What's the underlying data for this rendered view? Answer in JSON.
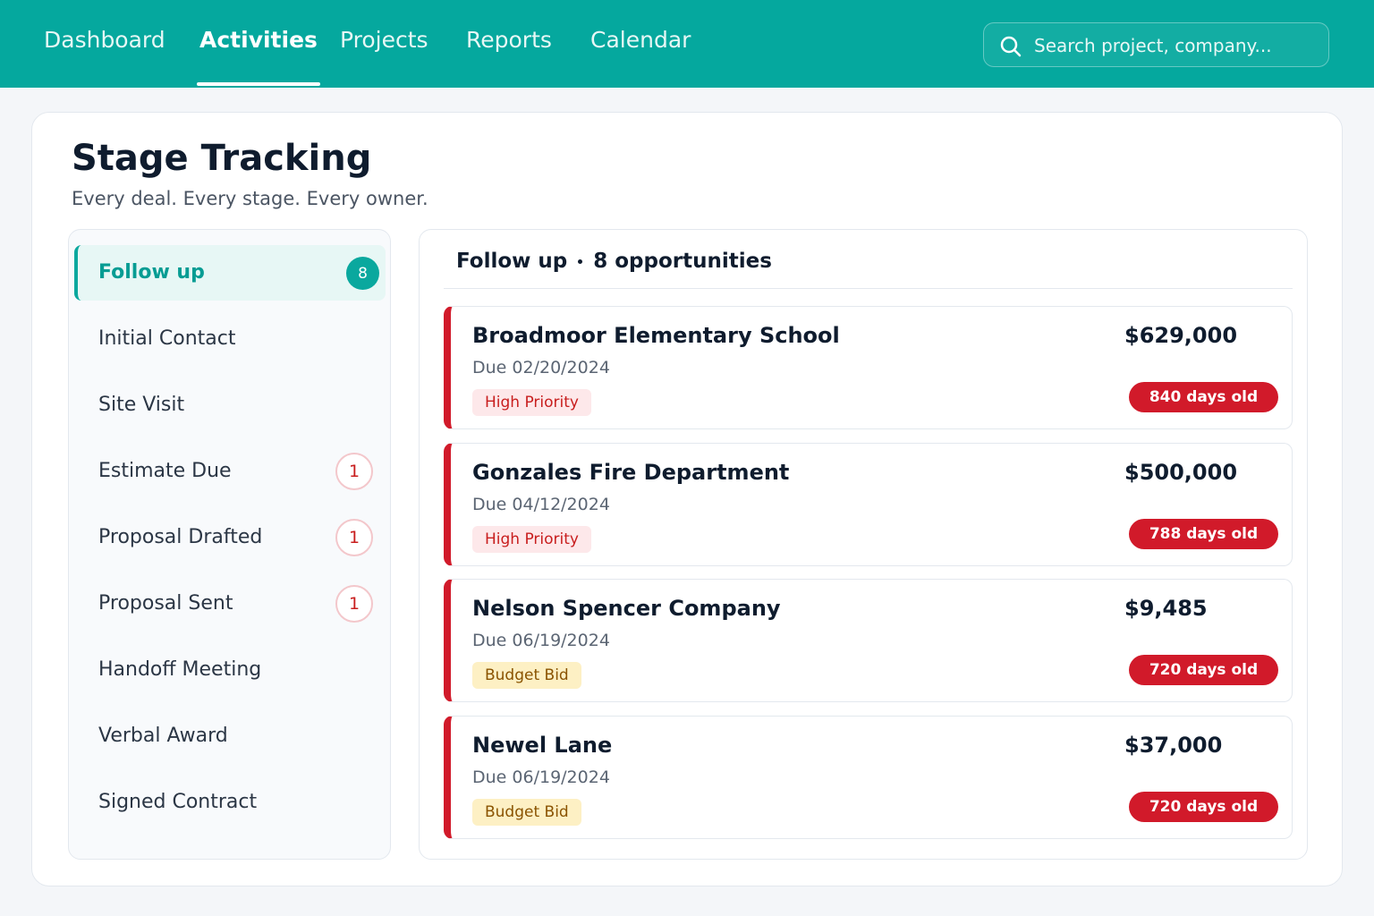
{
  "nav": {
    "items": [
      "Dashboard",
      "Activities",
      "Projects",
      "Reports",
      "Calendar"
    ],
    "active": 1,
    "search_placeholder": "Search project, company..."
  },
  "header": {
    "title": "Stage Tracking",
    "subtitle": "Every deal. Every stage. Every owner."
  },
  "stages": [
    {
      "name": "Follow up",
      "count": 8,
      "selected": true
    },
    {
      "name": "Initial Contact"
    },
    {
      "name": "Site Visit"
    },
    {
      "name": "Estimate Due",
      "count": 1
    },
    {
      "name": "Proposal Drafted",
      "count": 1
    },
    {
      "name": "Proposal Sent",
      "count": 1
    },
    {
      "name": "Handoff Meeting"
    },
    {
      "name": "Verbal Award"
    },
    {
      "name": "Signed Contract"
    }
  ],
  "panel": {
    "stage": "Follow up",
    "summary": "8 opportunities",
    "cards": [
      {
        "name": "Broadmoor Elementary School",
        "due": "Due 02/20/2024",
        "tag": {
          "text": "High Priority",
          "color": "#c81e1e",
          "background": "#fde8ea"
        },
        "amount": "$629,000",
        "age": "840 days old"
      },
      {
        "name": "Gonzales Fire Department",
        "due": "Due 04/12/2024",
        "tag": {
          "text": "High Priority",
          "color": "#c81e1e",
          "background": "#fde8ea"
        },
        "amount": "$500,000",
        "age": "788 days old"
      },
      {
        "name": "Nelson Spencer Company",
        "due": "Due 06/19/2024",
        "tag": {
          "text": "Budget Bid",
          "color": "#8a5300",
          "background": "#fdf0c4"
        },
        "amount": "$9,485",
        "age": "720 days old"
      },
      {
        "name": "Newel Lane",
        "due": "Due 06/19/2024",
        "tag": {
          "text": "Budget Bid",
          "color": "#8a5300",
          "background": "#fdf0c4"
        },
        "amount": "$37,000",
        "age": "720 days old"
      }
    ]
  }
}
